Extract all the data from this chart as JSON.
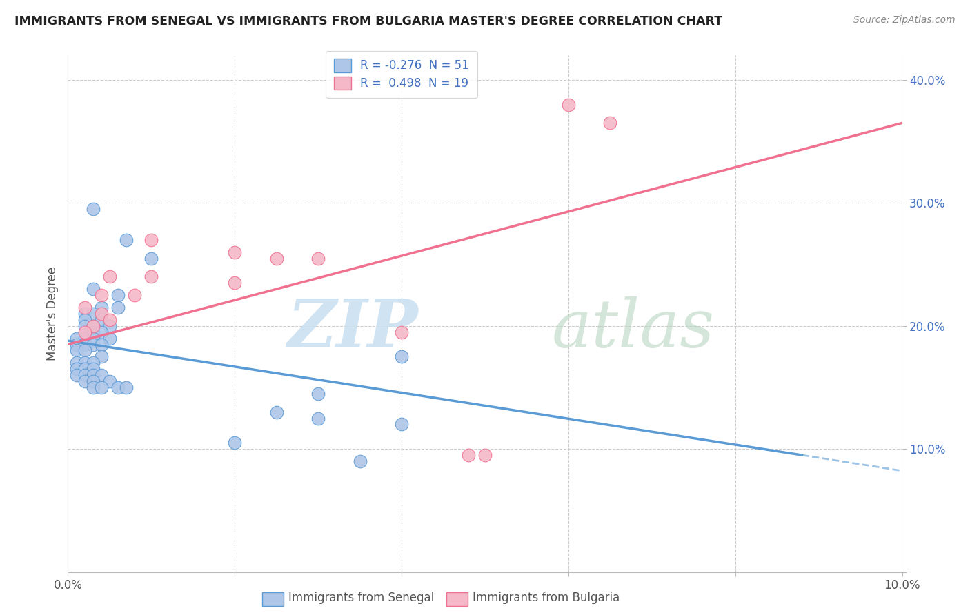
{
  "title": "IMMIGRANTS FROM SENEGAL VS IMMIGRANTS FROM BULGARIA MASTER'S DEGREE CORRELATION CHART",
  "source": "Source: ZipAtlas.com",
  "ylabel": "Master's Degree",
  "xlim": [
    0.0,
    0.1
  ],
  "ylim": [
    0.0,
    0.42
  ],
  "legend_entries": [
    {
      "label": "R = -0.276  N = 51",
      "color": "#aec6e8"
    },
    {
      "label": "R =  0.498  N = 19",
      "color": "#f4b8c8"
    }
  ],
  "senegal_points": [
    [
      0.003,
      0.295
    ],
    [
      0.007,
      0.27
    ],
    [
      0.01,
      0.255
    ],
    [
      0.003,
      0.23
    ],
    [
      0.006,
      0.225
    ],
    [
      0.004,
      0.215
    ],
    [
      0.006,
      0.215
    ],
    [
      0.002,
      0.21
    ],
    [
      0.003,
      0.21
    ],
    [
      0.002,
      0.205
    ],
    [
      0.004,
      0.205
    ],
    [
      0.002,
      0.2
    ],
    [
      0.003,
      0.2
    ],
    [
      0.005,
      0.2
    ],
    [
      0.003,
      0.195
    ],
    [
      0.004,
      0.195
    ],
    [
      0.001,
      0.19
    ],
    [
      0.002,
      0.19
    ],
    [
      0.003,
      0.19
    ],
    [
      0.005,
      0.19
    ],
    [
      0.001,
      0.185
    ],
    [
      0.002,
      0.185
    ],
    [
      0.003,
      0.185
    ],
    [
      0.004,
      0.185
    ],
    [
      0.001,
      0.18
    ],
    [
      0.002,
      0.18
    ],
    [
      0.004,
      0.175
    ],
    [
      0.001,
      0.17
    ],
    [
      0.002,
      0.17
    ],
    [
      0.003,
      0.17
    ],
    [
      0.001,
      0.165
    ],
    [
      0.002,
      0.165
    ],
    [
      0.003,
      0.165
    ],
    [
      0.001,
      0.16
    ],
    [
      0.002,
      0.16
    ],
    [
      0.003,
      0.16
    ],
    [
      0.004,
      0.16
    ],
    [
      0.002,
      0.155
    ],
    [
      0.003,
      0.155
    ],
    [
      0.005,
      0.155
    ],
    [
      0.003,
      0.15
    ],
    [
      0.004,
      0.15
    ],
    [
      0.006,
      0.15
    ],
    [
      0.007,
      0.15
    ],
    [
      0.04,
      0.175
    ],
    [
      0.03,
      0.145
    ],
    [
      0.025,
      0.13
    ],
    [
      0.03,
      0.125
    ],
    [
      0.04,
      0.12
    ],
    [
      0.02,
      0.105
    ],
    [
      0.035,
      0.09
    ]
  ],
  "bulgaria_points": [
    [
      0.01,
      0.27
    ],
    [
      0.02,
      0.26
    ],
    [
      0.025,
      0.255
    ],
    [
      0.03,
      0.255
    ],
    [
      0.005,
      0.24
    ],
    [
      0.01,
      0.24
    ],
    [
      0.02,
      0.235
    ],
    [
      0.004,
      0.225
    ],
    [
      0.008,
      0.225
    ],
    [
      0.002,
      0.215
    ],
    [
      0.004,
      0.21
    ],
    [
      0.005,
      0.205
    ],
    [
      0.003,
      0.2
    ],
    [
      0.002,
      0.195
    ],
    [
      0.04,
      0.195
    ],
    [
      0.06,
      0.38
    ],
    [
      0.065,
      0.365
    ],
    [
      0.05,
      0.095
    ],
    [
      0.048,
      0.095
    ]
  ],
  "senegal_line": {
    "x": [
      0.0,
      0.088
    ],
    "y": [
      0.188,
      0.095
    ]
  },
  "senegal_line_ext": {
    "x": [
      0.088,
      0.135
    ],
    "y": [
      0.095,
      0.045
    ]
  },
  "bulgaria_line": {
    "x": [
      0.0,
      0.1
    ],
    "y": [
      0.185,
      0.365
    ]
  },
  "senegal_color": "#5b9bd5",
  "bulgaria_color": "#f07090",
  "senegal_marker_color": "#aec6e8",
  "bulgaria_marker_color": "#f4b8c8",
  "background_color": "#ffffff",
  "grid_color": "#cccccc"
}
